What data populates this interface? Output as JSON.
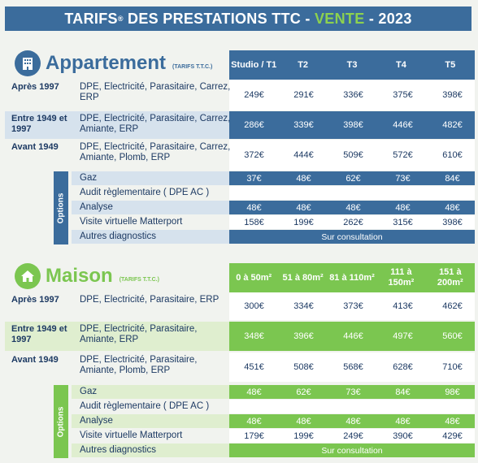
{
  "banner": {
    "part1": "TARIFS",
    "sup": "®",
    "part2": " DES PRESTATIONS TTC - ",
    "accent": "VENTE",
    "part3": " - 2023"
  },
  "colors": {
    "blue": "#3b6c9c",
    "green": "#7bc650",
    "light_blue": "#d6e2ed",
    "light_green": "#dfeecf"
  },
  "appartement": {
    "icon": "building-icon",
    "title": "Appartement",
    "note": "(TARIFS T.T.C.)",
    "columns": [
      "Studio / T1",
      "T2",
      "T3",
      "T4",
      "T5"
    ],
    "rows": [
      {
        "period": "Après 1997",
        "desc": "DPE, Electricité, Parasitaire, Carrez, ERP",
        "prices": [
          "249€",
          "291€",
          "336€",
          "375€",
          "398€"
        ]
      },
      {
        "period": "Entre 1949 et 1997",
        "desc": "DPE, Electricité, Parasitaire, Carrez, Amiante, ERP",
        "prices": [
          "286€",
          "339€",
          "398€",
          "446€",
          "482€"
        ]
      },
      {
        "period": "Avant 1949",
        "desc": "DPE, Electricité, Parasitaire, Carrez, Amiante, Plomb, ERP",
        "prices": [
          "372€",
          "444€",
          "509€",
          "572€",
          "610€"
        ]
      }
    ],
    "options_label": "Options",
    "options": [
      {
        "name": "Gaz",
        "prices": [
          "37€",
          "48€",
          "62€",
          "73€",
          "84€"
        ]
      },
      {
        "name": "Audit règlementaire ( DPE AC )",
        "prices": [
          "",
          "",
          "",
          "",
          ""
        ]
      },
      {
        "name": "Analyse",
        "prices": [
          "48€",
          "48€",
          "48€",
          "48€",
          "48€"
        ]
      },
      {
        "name": "Visite virtuelle Matterport",
        "prices": [
          "158€",
          "199€",
          "262€",
          "315€",
          "398€"
        ]
      }
    ],
    "other": {
      "name": "Autres diagnostics",
      "value": "Sur consultation"
    }
  },
  "maison": {
    "icon": "house-icon",
    "title": "Maison",
    "note": "(TARIFS T.T.C.)",
    "columns": [
      "0 à 50m²",
      "51 à 80m²",
      "81 à 110m²",
      "111 à 150m²",
      "151 à 200m²"
    ],
    "rows": [
      {
        "period": "Après 1997",
        "desc": "DPE, Electricité, Parasitaire, ERP",
        "prices": [
          "300€",
          "334€",
          "373€",
          "413€",
          "462€"
        ]
      },
      {
        "period": "Entre 1949 et 1997",
        "desc": "DPE, Electricité, Parasitaire, Amiante, ERP",
        "prices": [
          "348€",
          "396€",
          "446€",
          "497€",
          "560€"
        ]
      },
      {
        "period": "Avant 1949",
        "desc": "DPE, Electricité, Parasitaire, Amiante, Plomb, ERP",
        "prices": [
          "451€",
          "508€",
          "568€",
          "628€",
          "710€"
        ]
      }
    ],
    "options_label": "Options",
    "options": [
      {
        "name": "Gaz",
        "prices": [
          "48€",
          "62€",
          "73€",
          "84€",
          "98€"
        ]
      },
      {
        "name": "Audit règlementaire ( DPE AC )",
        "prices": [
          "",
          "",
          "",
          "",
          ""
        ]
      },
      {
        "name": "Analyse",
        "prices": [
          "48€",
          "48€",
          "48€",
          "48€",
          "48€"
        ]
      },
      {
        "name": "Visite virtuelle Matterport",
        "prices": [
          "179€",
          "199€",
          "249€",
          "390€",
          "429€"
        ]
      }
    ],
    "other": {
      "name": "Autres diagnostics",
      "value": "Sur consultation"
    }
  }
}
